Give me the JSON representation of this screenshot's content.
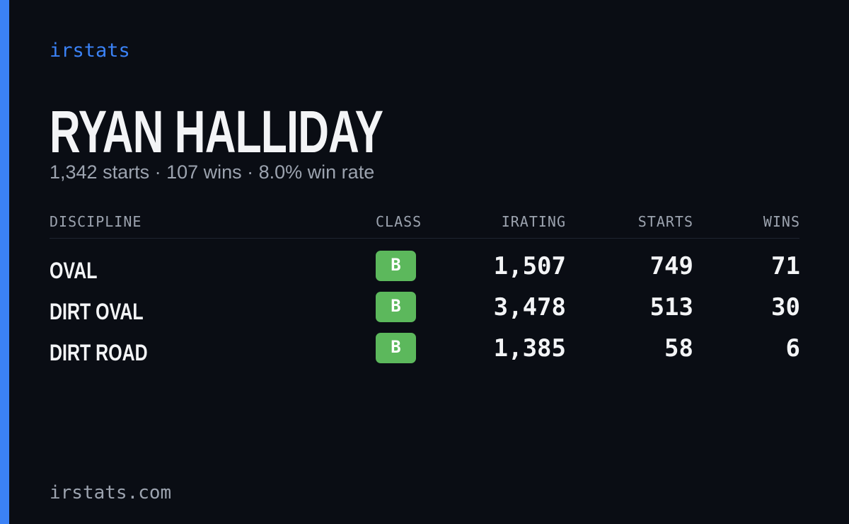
{
  "brand": "irstats",
  "driver": {
    "name": "RYAN HALLIDAY",
    "summary": "1,342 starts · 107 wins · 8.0% win rate"
  },
  "table": {
    "headers": [
      "DISCIPLINE",
      "CLASS",
      "IRATING",
      "STARTS",
      "WINS"
    ],
    "rows": [
      [
        "OVAL",
        "B",
        "1,507",
        "749",
        "71"
      ],
      [
        "DIRT OVAL",
        "B",
        "3,478",
        "513",
        "30"
      ],
      [
        "DIRT ROAD",
        "B",
        "1,385",
        "58",
        "6"
      ]
    ]
  },
  "footer": "irstats.com"
}
